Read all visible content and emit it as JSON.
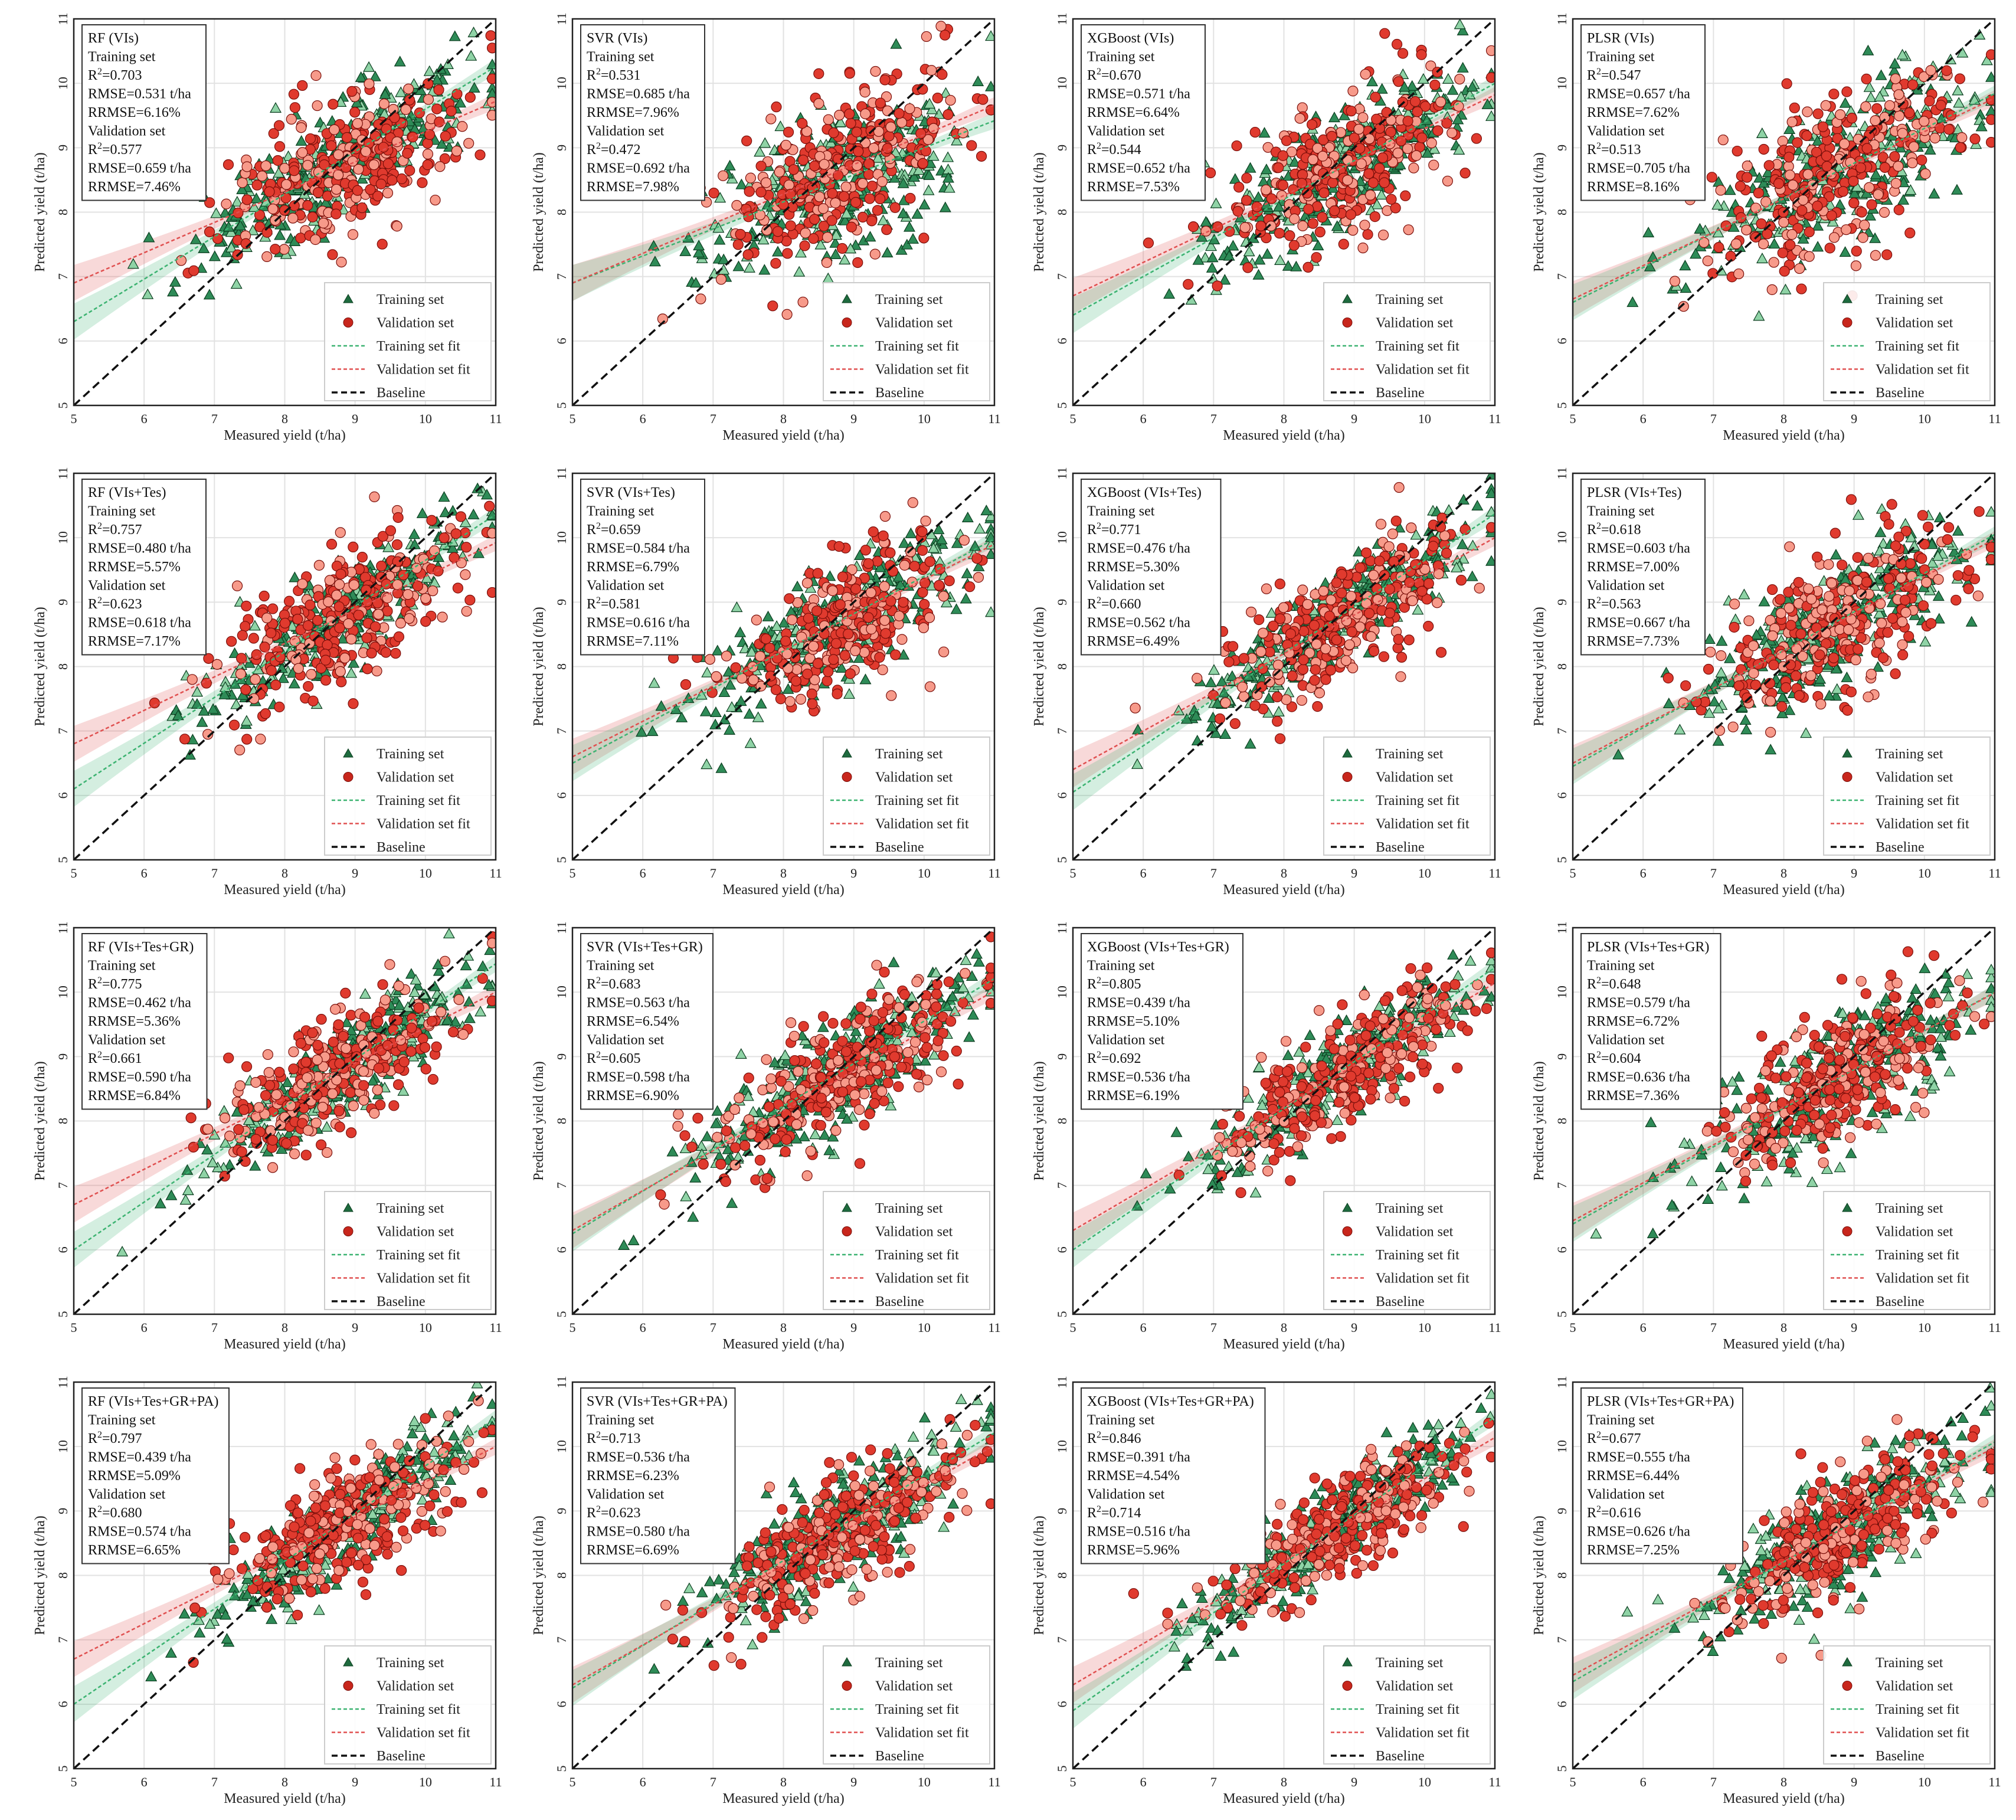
{
  "figure": {
    "xlabel": "Measured yield (t/ha)",
    "ylabel": "Predicted yield (t/ha)",
    "xlim": [
      5,
      11
    ],
    "ylim": [
      5,
      11
    ],
    "ticks": [
      5,
      6,
      7,
      8,
      9,
      10,
      11
    ],
    "training_color": "#2e8b57",
    "training_edge": "#0b3d1f",
    "validation_color": "#e03a2e",
    "validation_edge": "#7a0f0a",
    "training_fit_color": "#3cb371",
    "validation_fit_color": "#e05050",
    "baseline_color": "#111111",
    "legend": {
      "training": "Training set",
      "validation": "Validation set",
      "training_fit": "Training set fit",
      "validation_fit": "Validation set fit",
      "baseline": "Baseline"
    },
    "stats_labels": {
      "training_header": "Training set",
      "validation_header": "Validation set"
    }
  },
  "chart_data": [
    {
      "type": "scatter",
      "title": "RF (VIs)",
      "train": {
        "r2": "0.703",
        "rmse": "0.531 t/ha",
        "rrmse": "6.16%"
      },
      "val": {
        "r2": "0.577",
        "rmse": "0.659 t/ha",
        "rrmse": "7.46%"
      },
      "train_fit": [
        0.66,
        3.0
      ],
      "val_fit": [
        0.47,
        4.55
      ]
    },
    {
      "type": "scatter",
      "title": "SVR (VIs)",
      "train": {
        "r2": "0.531",
        "rmse": "0.685 t/ha",
        "rrmse": "7.96%"
      },
      "val": {
        "r2": "0.472",
        "rmse": "0.692 t/ha",
        "rrmse": "7.98%"
      },
      "train_fit": [
        0.42,
        4.8
      ],
      "val_fit": [
        0.46,
        4.6
      ]
    },
    {
      "type": "scatter",
      "title": "XGBoost (VIs)",
      "train": {
        "r2": "0.670",
        "rmse": "0.571 t/ha",
        "rrmse": "6.64%"
      },
      "val": {
        "r2": "0.544",
        "rmse": "0.652 t/ha",
        "rrmse": "7.53%"
      },
      "train_fit": [
        0.6,
        3.4
      ],
      "val_fit": [
        0.52,
        4.1
      ]
    },
    {
      "type": "scatter",
      "title": "PLSR (VIs)",
      "train": {
        "r2": "0.547",
        "rmse": "0.657 t/ha",
        "rrmse": "7.62%"
      },
      "val": {
        "r2": "0.513",
        "rmse": "0.705 t/ha",
        "rrmse": "8.16%"
      },
      "train_fit": [
        0.54,
        3.9
      ],
      "val_fit": [
        0.52,
        4.05
      ]
    },
    {
      "type": "scatter",
      "title": "RF (VIs+Tes)",
      "train": {
        "r2": "0.757",
        "rmse": "0.480 t/ha",
        "rrmse": "5.57%"
      },
      "val": {
        "r2": "0.623",
        "rmse": "0.618 t/ha",
        "rrmse": "7.17%"
      },
      "train_fit": [
        0.71,
        2.55
      ],
      "val_fit": [
        0.52,
        4.2
      ]
    },
    {
      "type": "scatter",
      "title": "SVR (VIs+Tes)",
      "train": {
        "r2": "0.659",
        "rmse": "0.584 t/ha",
        "rrmse": "6.79%"
      },
      "val": {
        "r2": "0.581",
        "rmse": "0.616 t/ha",
        "rrmse": "7.11%"
      },
      "train_fit": [
        0.58,
        3.6
      ],
      "val_fit": [
        0.55,
        3.85
      ]
    },
    {
      "type": "scatter",
      "title": "XGBoost (VIs+Tes)",
      "train": {
        "r2": "0.771",
        "rmse": "0.476 t/ha",
        "rrmse": "5.30%"
      },
      "val": {
        "r2": "0.660",
        "rmse": "0.562 t/ha",
        "rrmse": "6.49%"
      },
      "train_fit": [
        0.72,
        2.45
      ],
      "val_fit": [
        0.6,
        3.4
      ]
    },
    {
      "type": "scatter",
      "title": "PLSR (VIs+Tes)",
      "train": {
        "r2": "0.618",
        "rmse": "0.603 t/ha",
        "rrmse": "7.00%"
      },
      "val": {
        "r2": "0.563",
        "rmse": "0.667 t/ha",
        "rrmse": "7.73%"
      },
      "train_fit": [
        0.6,
        3.45
      ],
      "val_fit": [
        0.58,
        3.6
      ]
    },
    {
      "type": "scatter",
      "title": "RF (VIs+Tes+GR)",
      "train": {
        "r2": "0.775",
        "rmse": "0.462 t/ha",
        "rrmse": "5.36%"
      },
      "val": {
        "r2": "0.661",
        "rmse": "0.590 t/ha",
        "rrmse": "6.84%"
      },
      "train_fit": [
        0.74,
        2.3
      ],
      "val_fit": [
        0.55,
        3.95
      ]
    },
    {
      "type": "scatter",
      "title": "SVR (VIs+Tes+GR)",
      "train": {
        "r2": "0.683",
        "rmse": "0.563 t/ha",
        "rrmse": "6.54%"
      },
      "val": {
        "r2": "0.605",
        "rmse": "0.598 t/ha",
        "rrmse": "6.90%"
      },
      "train_fit": [
        0.66,
        2.95
      ],
      "val_fit": [
        0.62,
        3.2
      ]
    },
    {
      "type": "scatter",
      "title": "XGBoost (VIs+Tes+GR)",
      "train": {
        "r2": "0.805",
        "rmse": "0.439 t/ha",
        "rrmse": "5.10%"
      },
      "val": {
        "r2": "0.692",
        "rmse": "0.536 t/ha",
        "rrmse": "6.19%"
      },
      "train_fit": [
        0.73,
        2.35
      ],
      "val_fit": [
        0.64,
        3.1
      ]
    },
    {
      "type": "scatter",
      "title": "PLSR (VIs+Tes+GR)",
      "train": {
        "r2": "0.648",
        "rmse": "0.579 t/ha",
        "rrmse": "6.72%"
      },
      "val": {
        "r2": "0.604",
        "rmse": "0.636 t/ha",
        "rrmse": "7.36%"
      },
      "train_fit": [
        0.6,
        3.4
      ],
      "val_fit": [
        0.59,
        3.5
      ]
    },
    {
      "type": "scatter",
      "title": "RF (VIs+Tes+GR+PA)",
      "train": {
        "r2": "0.797",
        "rmse": "0.439 t/ha",
        "rrmse": "5.09%"
      },
      "val": {
        "r2": "0.680",
        "rmse": "0.574 t/ha",
        "rrmse": "6.65%"
      },
      "train_fit": [
        0.74,
        2.3
      ],
      "val_fit": [
        0.55,
        3.95
      ]
    },
    {
      "type": "scatter",
      "title": "SVR (VIs+Tes+GR+PA)",
      "train": {
        "r2": "0.713",
        "rmse": "0.536 t/ha",
        "rrmse": "6.23%"
      },
      "val": {
        "r2": "0.623",
        "rmse": "0.580 t/ha",
        "rrmse": "6.69%"
      },
      "train_fit": [
        0.66,
        2.95
      ],
      "val_fit": [
        0.62,
        3.2
      ]
    },
    {
      "type": "scatter",
      "title": "XGBoost (VIs+Tes+GR+PA)",
      "train": {
        "r2": "0.846",
        "rmse": "0.391 t/ha",
        "rrmse": "4.54%"
      },
      "val": {
        "r2": "0.714",
        "rmse": "0.516 t/ha",
        "rrmse": "5.96%"
      },
      "train_fit": [
        0.76,
        2.1
      ],
      "val_fit": [
        0.64,
        3.1
      ]
    },
    {
      "type": "scatter",
      "title": "PLSR (VIs+Tes+GR+PA)",
      "train": {
        "r2": "0.677",
        "rmse": "0.555 t/ha",
        "rrmse": "6.44%"
      },
      "val": {
        "r2": "0.616",
        "rmse": "0.626 t/ha",
        "rrmse": "7.25%"
      },
      "train_fit": [
        0.62,
        3.25
      ],
      "val_fit": [
        0.59,
        3.5
      ]
    }
  ]
}
